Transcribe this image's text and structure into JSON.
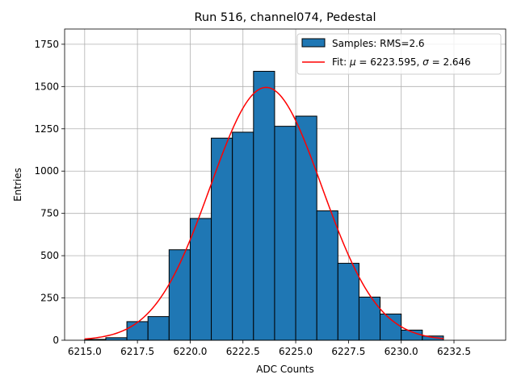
{
  "chart_data": {
    "type": "bar",
    "title": "Run 516, channel074, Pedestal",
    "xlabel": "ADC Counts",
    "ylabel": "Entries",
    "xlim": [
      6214.05,
      6234.95
    ],
    "ylim": [
      0,
      1840
    ],
    "grid": true,
    "legend_position": "top-right",
    "x_ticks": [
      6215.0,
      6217.5,
      6220.0,
      6222.5,
      6225.0,
      6227.5,
      6230.0,
      6232.5
    ],
    "x_tick_labels": [
      "6215.0",
      "6217.5",
      "6220.0",
      "6222.5",
      "6225.0",
      "6227.5",
      "6230.0",
      "6232.5"
    ],
    "y_ticks": [
      0,
      250,
      500,
      750,
      1000,
      1250,
      1500,
      1750
    ],
    "y_tick_labels": [
      "0",
      "250",
      "500",
      "750",
      "1000",
      "1250",
      "1500",
      "1750"
    ],
    "histogram": {
      "name": "Samples: RMS=2.6",
      "color": "#1f77b4",
      "edge_color": "#000000",
      "bin_edges": [
        6215,
        6216,
        6217,
        6218,
        6219,
        6220,
        6221,
        6222,
        6223,
        6224,
        6225,
        6226,
        6227,
        6228,
        6229,
        6230,
        6231,
        6232,
        6233,
        6234
      ],
      "counts": [
        5,
        15,
        110,
        140,
        535,
        720,
        1195,
        1230,
        1590,
        1265,
        1325,
        765,
        455,
        255,
        155,
        60,
        25,
        0,
        0
      ]
    },
    "fit": {
      "name": "Fit: $\\mu$ = 6223.595, $\\sigma$ = 2.646",
      "color": "#ff0000",
      "mu": 6223.595,
      "sigma": 2.646,
      "amplitude": 1495,
      "x_range": [
        6215.0,
        6232.0
      ]
    }
  },
  "legend": {
    "hist_label": "Samples: RMS=2.6",
    "fit_prefix": "Fit: ",
    "mu_symbol": "μ",
    "fit_mid": " = 6223.595, ",
    "sigma_symbol": "σ",
    "fit_suffix": " = 2.646"
  }
}
